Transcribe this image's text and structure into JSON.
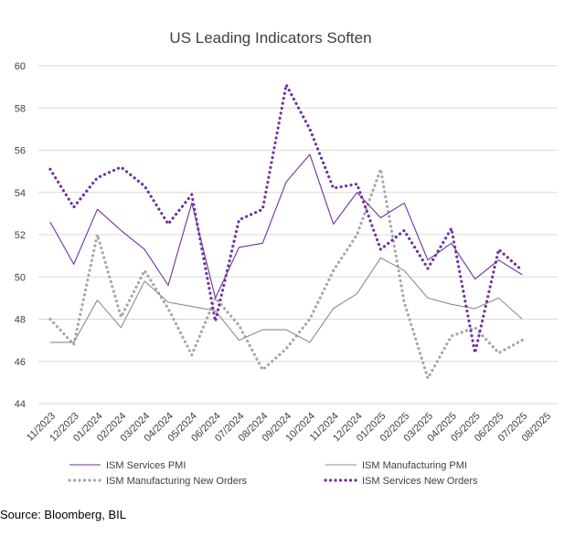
{
  "colors": {
    "services_pmi": "#7030a0",
    "manufacturing_pmi": "#8c8c8c",
    "manufacturing_new_orders": "#a6a6a6",
    "services_new_orders": "#7030a0",
    "grid": "#d9d9d9",
    "text": "#404040"
  },
  "source": "Source: Bloomberg, BIL",
  "chart_data": {
    "type": "line",
    "title": "US Leading Indicators Soften",
    "xlabel": "",
    "ylabel": "",
    "ylim": [
      44,
      60
    ],
    "yticks": [
      44,
      46,
      48,
      50,
      52,
      54,
      56,
      58,
      60
    ],
    "grid": true,
    "legend_position": "bottom",
    "categories": [
      "11/2023",
      "12/2023",
      "01/2024",
      "02/2024",
      "03/2024",
      "04/2024",
      "05/2024",
      "06/2024",
      "07/2024",
      "08/2024",
      "09/2024",
      "10/2024",
      "11/2024",
      "12/2024",
      "01/2025",
      "02/2025",
      "03/2025",
      "04/2025",
      "05/2025",
      "06/2025",
      "07/2025",
      "08/2025"
    ],
    "series": [
      {
        "name": "ISM Services PMI",
        "style": "solid",
        "color": "#7030a0",
        "values": [
          52.6,
          50.6,
          53.2,
          52.2,
          51.3,
          49.6,
          53.5,
          49.0,
          51.4,
          51.6,
          54.5,
          55.8,
          52.5,
          54.0,
          52.8,
          53.5,
          50.8,
          51.6,
          49.9,
          50.8,
          50.1,
          null
        ]
      },
      {
        "name": "ISM Manufacturing PMI",
        "style": "solid",
        "color": "#8c8c8c",
        "values": [
          46.9,
          46.9,
          48.9,
          47.6,
          49.8,
          48.8,
          48.6,
          48.4,
          47.0,
          47.5,
          47.5,
          46.9,
          48.5,
          49.2,
          50.9,
          50.3,
          49.0,
          48.7,
          48.5,
          49.0,
          48.0,
          null
        ]
      },
      {
        "name": "ISM Manufacturing New Orders",
        "style": "dotted",
        "color": "#a6a6a6",
        "values": [
          48.0,
          46.8,
          52.0,
          48.1,
          50.3,
          48.5,
          46.3,
          49.0,
          47.7,
          45.6,
          46.6,
          48.0,
          50.3,
          52.0,
          55.1,
          48.8,
          45.2,
          47.2,
          47.6,
          46.4,
          47.0,
          null
        ]
      },
      {
        "name": "ISM Services New Orders",
        "style": "dotted",
        "color": "#7030a0",
        "values": [
          55.1,
          53.3,
          54.7,
          55.2,
          54.3,
          52.5,
          53.9,
          47.9,
          52.7,
          53.2,
          59.1,
          57.0,
          54.2,
          54.4,
          51.3,
          52.2,
          50.4,
          52.3,
          46.4,
          51.3,
          50.3,
          null
        ]
      }
    ]
  }
}
